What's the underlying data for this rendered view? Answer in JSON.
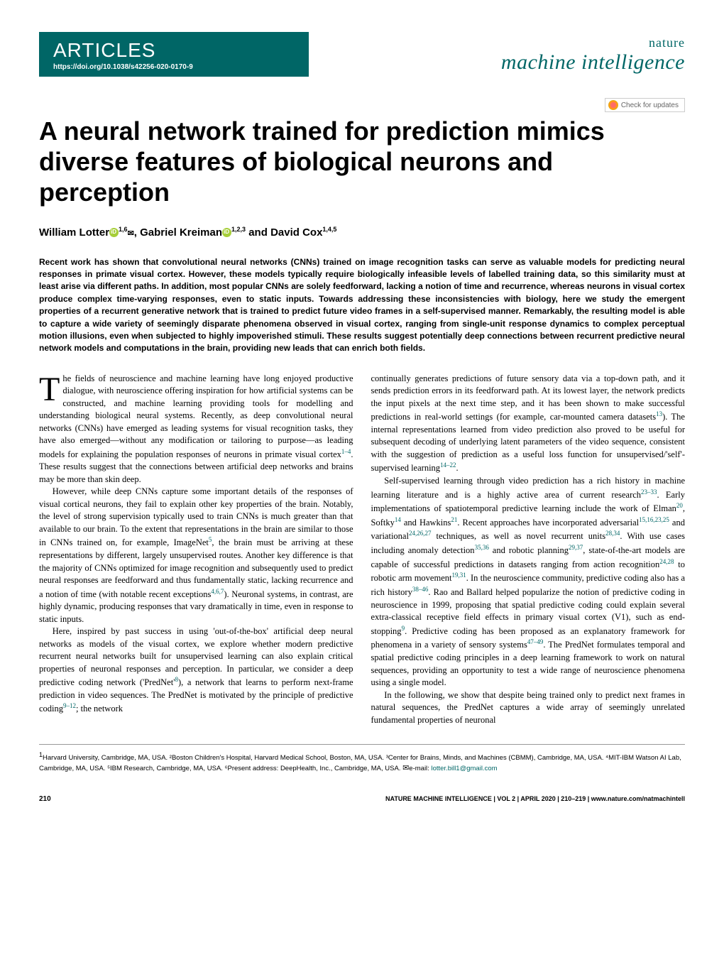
{
  "header": {
    "section_label": "ARTICLES",
    "doi": "https://doi.org/10.1038/s42256-020-0170-9",
    "journal_prefix": "nature",
    "journal_name": "machine intelligence",
    "check_updates": "Check for updates"
  },
  "title": "A neural network trained for prediction mimics diverse features of biological neurons and perception",
  "authors": {
    "a1_name": "William Lotter",
    "a1_affil": "1,6",
    "a2_name": "Gabriel Kreiman",
    "a2_affil": "1,2,3",
    "a3_name": "David Cox",
    "a3_affil": "1,4,5",
    "and": " and "
  },
  "abstract": "Recent work has shown that convolutional neural networks (CNNs) trained on image recognition tasks can serve as valuable models for predicting neural responses in primate visual cortex. However, these models typically require biologically infeasible levels of labelled training data, so this similarity must at least arise via different paths. In addition, most popular CNNs are solely feedforward, lacking a notion of time and recurrence, whereas neurons in visual cortex produce complex time-varying responses, even to static inputs. Towards addressing these inconsistencies with biology, here we study the emergent properties of a recurrent generative network that is trained to predict future video frames in a self-supervised manner. Remarkably, the resulting model is able to capture a wide variety of seemingly disparate phenomena observed in visual cortex, ranging from single-unit response dynamics to complex perceptual motion illusions, even when subjected to highly impoverished stimuli. These results suggest potentially deep connections between recurrent predictive neural network models and computations in the brain, providing new leads that can enrich both fields.",
  "body": {
    "col1": {
      "p1_first": "T",
      "p1": "he fields of neuroscience and machine learning have long enjoyed productive dialogue, with neuroscience offering inspiration for how artificial systems can be constructed, and machine learning providing tools for modelling and understanding biological neural systems. Recently, as deep convolutional neural networks (CNNs) have emerged as leading systems for visual recognition tasks, they have also emerged—without any modification or tailoring to purpose—as leading models for explaining the population responses of neurons in primate visual cortex",
      "p1_ref1": "1–4",
      "p1_tail": ". These results suggest that the connections between artificial deep networks and brains may be more than skin deep.",
      "p2": "However, while deep CNNs capture some important details of the responses of visual cortical neurons, they fail to explain other key properties of the brain. Notably, the level of strong supervision typically used to train CNNs is much greater than that available to our brain. To the extent that representations in the brain are similar to those in CNNs trained on, for example, ImageNet",
      "p2_ref1": "5",
      "p2_mid": ", the brain must be arriving at these representations by different, largely unsupervised routes. Another key difference is that the majority of CNNs optimized for image recognition and subsequently used to predict neural responses are feedforward and thus fundamentally static, lacking recurrence and a notion of time (with notable recent exceptions",
      "p2_ref2": "4,6,7",
      "p2_tail": "). Neuronal systems, in contrast, are highly dynamic, producing responses that vary dramatically in time, even in response to static inputs.",
      "p3": "Here, inspired by past success in using 'out-of-the-box' artificial deep neural networks as models of the visual cortex, we explore whether modern predictive recurrent neural networks built for unsupervised learning can also explain critical properties of neuronal responses and perception. In particular, we consider a deep predictive coding network ('PredNet'",
      "p3_ref1": "8",
      "p3_mid": "), a network that learns to perform next-frame prediction in video sequences. The PredNet is motivated by the principle of predictive coding",
      "p3_ref2": "9–12",
      "p3_tail": "; the network"
    },
    "col2": {
      "p1": "continually generates predictions of future sensory data via a top-down path, and it sends prediction errors in its feedforward path. At its lowest layer, the network predicts the input pixels at the next time step, and it has been shown to make successful predictions in real-world settings (for example, car-mounted camera datasets",
      "p1_ref1": "13",
      "p1_mid": "). The internal representations learned from video prediction also proved to be useful for subsequent decoding of underlying latent parameters of the video sequence, consistent with the suggestion of prediction as a useful loss function for unsupervised/'self'-supervised learning",
      "p1_ref2": "14–22",
      "p1_tail": ".",
      "p2": "Self-supervised learning through video prediction has a rich history in machine learning literature and is a highly active area of current research",
      "p2_ref1": "23–33",
      "p2_a": ". Early implementations of spatiotemporal predictive learning include the work of Elman",
      "p2_ref2": "20",
      "p2_b": ", Softky",
      "p2_ref3": "14",
      "p2_c": " and Hawkins",
      "p2_ref4": "21",
      "p2_d": ". Recent approaches have incorporated adversarial",
      "p2_ref5": "15,16,23,25",
      "p2_e": " and variational",
      "p2_ref6": "24,26,27",
      "p2_f": " techniques, as well as novel recurrent units",
      "p2_ref7": "28,34",
      "p2_g": ". With use cases including anomaly detection",
      "p2_ref8": "35,36",
      "p2_h": " and robotic planning",
      "p2_ref9": "29,37",
      "p2_i": ", state-of-the-art models are capable of successful predictions in datasets ranging from action recognition",
      "p2_ref10": "24,28",
      "p2_j": " to robotic arm movement",
      "p2_ref11": "19,31",
      "p2_k": ". In the neuroscience community, predictive coding also has a rich history",
      "p2_ref12": "38–46",
      "p2_l": ". Rao and Ballard helped popularize the notion of predictive coding in neuroscience in 1999, proposing that spatial predictive coding could explain several extra-classical receptive field effects in primary visual cortex (V1), such as end-stopping",
      "p2_ref13": "9",
      "p2_m": ". Predictive coding has been proposed as an explanatory framework for phenomena in a variety of sensory systems",
      "p2_ref14": "47–49",
      "p2_n": ". The PredNet formulates temporal and spatial predictive coding principles in a deep learning framework to work on natural sequences, providing an opportunity to test a wide range of neuroscience phenomena using a single model.",
      "p3": "In the following, we show that despite being trained only to predict next frames in natural sequences, the PredNet captures a wide array of seemingly unrelated fundamental properties of neuronal"
    }
  },
  "affiliations": {
    "text": "Harvard University, Cambridge, MA, USA. ²Boston Children's Hospital, Harvard Medical School, Boston, MA, USA. ³Center for Brains, Minds, and Machines (CBMM), Cambridge, MA, USA. ⁴MIT-IBM Watson AI Lab, Cambridge, MA, USA. ⁵IBM Research, Cambridge, MA, USA. ⁶Present address: DeepHealth, Inc., Cambridge, MA, USA. ",
    "email_label": "e-mail: ",
    "email": "lotter.bill1@gmail.com",
    "sup1": "1"
  },
  "footer": {
    "page_num": "210",
    "citation": "NATURE MACHINE INTELLIGENCE | VOL 2 | APRIL 2020 | 210–219 | www.nature.com/natmachintell"
  }
}
